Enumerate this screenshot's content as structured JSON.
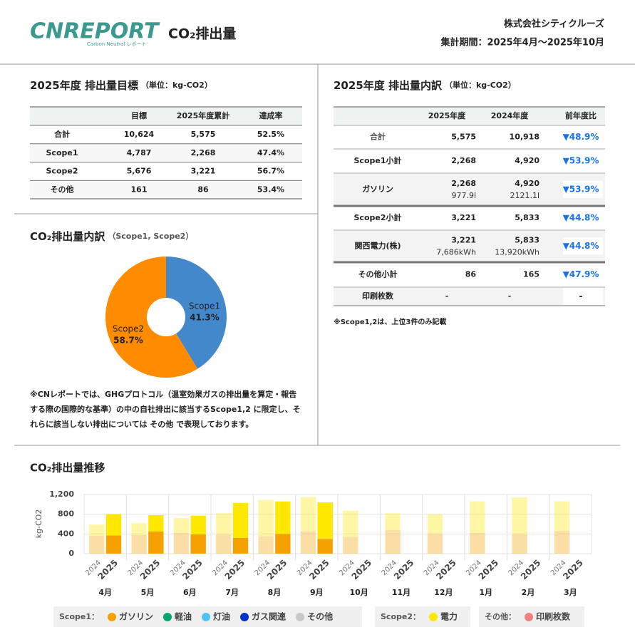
{
  "header": {
    "logo": "CNREPORT",
    "logo_sub": "Carbon Neutral レポート",
    "title": "CO₂排出量",
    "company": "株式会社シティクルーズ",
    "period": "集計期間：2025年4月〜2025年10月"
  },
  "target": {
    "title": "2025年度 排出量目標",
    "unit": "（単位：kg-CO2）",
    "header": [
      "目標",
      "2025年度累計",
      "達成率"
    ],
    "rows": [
      [
        "合計",
        "10,624",
        "5,575",
        "52.5%"
      ],
      [
        "Scope1",
        "4,787",
        "2,268",
        "47.4%"
      ],
      [
        "Scope2",
        "5,676",
        "3,221",
        "56.7%"
      ],
      [
        "その他",
        "161",
        "86",
        "53.4%"
      ]
    ]
  },
  "breakdown": {
    "title": "2025年度 排出量内訳",
    "unit": "（単位：kg-CO2）",
    "header": [
      "2025年度",
      "2024年度",
      "前年度比"
    ],
    "rows": [
      {
        "cells": [
          "合計",
          "5,575",
          "10,918",
          "▼48.9%"
        ]
      },
      {
        "cells": [
          "Scope1小計",
          "2,268",
          "4,920",
          "▼53.9%"
        ]
      },
      {
        "cells": [
          "ガソリン",
          "2,268",
          "4,920",
          "▼53.9%"
        ],
        "sub": [
          "977.9l",
          "2121.1l"
        ]
      },
      {
        "cells": [
          "Scope2小計",
          "3,221",
          "5,833",
          "▼44.8%"
        ]
      },
      {
        "cells": [
          "関西電力(株)",
          "3,221",
          "5,833",
          "▼44.8%"
        ],
        "sub": [
          "7,686kWh",
          "13,920kWh"
        ]
      },
      {
        "cells": [
          "その他小計",
          "86",
          "165",
          "▼47.9%"
        ]
      },
      {
        "cells": [
          "印刷枚数",
          "-",
          "-",
          "-"
        ]
      }
    ],
    "note": "※Scope1,2は、上位3件のみ記載"
  },
  "chart_data": [
    {
      "type": "pie",
      "title": "CO₂排出量内訳",
      "subtitle": "（Scope1, Scope2）",
      "categories": [
        "Scope1",
        "Scope2"
      ],
      "values": [
        41.3,
        58.7
      ],
      "value_labels": [
        "41.3%",
        "58.7%"
      ],
      "colors": [
        "#4488cc",
        "#ff8c00"
      ],
      "note": "※CNレポートでは、GHGプロトコル（温室効果ガスの排出量を算定・報告する際の国際的な基準）の中の自社排出に該当するScope1,2 に限定し、それらに該当しない排出については その他 で表現しております。"
    },
    {
      "type": "bar",
      "title": "CO₂排出量推移",
      "y_label": "kg-CO2",
      "categories": [
        "4月",
        "5月",
        "6月",
        "7月",
        "8月",
        "9月",
        "10月",
        "11月",
        "12月",
        "1月",
        "2月",
        "3月"
      ],
      "years": [
        "2024",
        "2025"
      ],
      "ylim": [
        0,
        1200
      ],
      "yticks": [
        0,
        400,
        800,
        {
          "value": 1200,
          "label": "1,200"
        }
      ],
      "grid": true,
      "groups": [
        {
          "label": "Scope1：",
          "series": [
            {
              "name": "ガソリン",
              "color": "#f5a200",
              "values": [
                [
                  360,
                  370
                ],
                [
                  380,
                  450
                ],
                [
                  420,
                  390
                ],
                [
                  390,
                  320
                ],
                [
                  350,
                  400
                ],
                [
                  450,
                  300
                ],
                [
                  340,
                  null
                ],
                [
                  480,
                  null
                ],
                [
                  410,
                  null
                ],
                [
                  420,
                  null
                ],
                [
                  400,
                  null
                ],
                [
                  460,
                  null
                ]
              ]
            },
            {
              "name": "軽油",
              "color": "#00a86b",
              "values": [
                null,
                null,
                null,
                null,
                null,
                null,
                null,
                null,
                null,
                null,
                null,
                null
              ]
            },
            {
              "name": "灯油",
              "color": "#4fc3f7",
              "values": [
                null,
                null,
                null,
                null,
                null,
                null,
                null,
                null,
                null,
                null,
                null,
                null
              ]
            },
            {
              "name": "ガス関連",
              "color": "#0033cc",
              "values": [
                null,
                null,
                null,
                null,
                null,
                null,
                null,
                null,
                null,
                null,
                null,
                null
              ]
            },
            {
              "name": "その他",
              "color": "#c8c8c8",
              "values": [
                null,
                null,
                null,
                null,
                null,
                null,
                null,
                null,
                null,
                null,
                null,
                null
              ]
            }
          ]
        },
        {
          "label": "Scope2：",
          "series": [
            {
              "name": "電力",
              "color": "#ffe800",
              "values": [
                [
                  230,
                  430
                ],
                [
                  240,
                  330
                ],
                [
                  300,
                  380
                ],
                [
                  430,
                  710
                ],
                [
                  740,
                  660
                ],
                [
                  700,
                  740
                ],
                [
                  530,
                  null
                ],
                [
                  340,
                  null
                ],
                [
                  390,
                  null
                ],
                [
                  640,
                  null
                ],
                [
                  740,
                  null
                ],
                [
                  600,
                  null
                ]
              ]
            }
          ]
        },
        {
          "label": "その他：",
          "series": [
            {
              "name": "印刷枚数",
              "color": "#f28080",
              "values": [
                null,
                null,
                null,
                null,
                null,
                null,
                null,
                null,
                null,
                null,
                null,
                null
              ]
            }
          ]
        }
      ]
    }
  ]
}
